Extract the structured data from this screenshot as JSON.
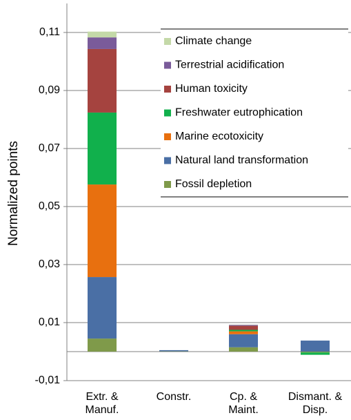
{
  "chart_data": {
    "type": "stacked-bar",
    "y_label": "Normalized points",
    "categories": [
      "Extr. &\nManuf.",
      "Constr.",
      "Cp. &\nMaint.",
      "Dismant. &\nDisp."
    ],
    "series": [
      {
        "name": "Climate change",
        "color": "#c4d9a8",
        "values": [
          0.002,
          0,
          0.0001,
          0
        ]
      },
      {
        "name": "Terrestrial acidification",
        "color": "#7a5b9a",
        "values": [
          0.004,
          0,
          0.0003,
          0
        ]
      },
      {
        "name": "Human toxicity",
        "color": "#a5433f",
        "values": [
          0.0219,
          0,
          0.0014,
          0
        ]
      },
      {
        "name": "Freshwater eutrophication",
        "color": "#11b04c",
        "values": [
          0.0248,
          0,
          0.0005,
          -0.0008
        ]
      },
      {
        "name": "Marine ecotoxicity",
        "color": "#e8700f",
        "values": [
          0.0319,
          0,
          0.001,
          0
        ]
      },
      {
        "name": "Natural land transformation",
        "color": "#4a6fa5",
        "values": [
          0.0212,
          0.0004,
          0.0045,
          0.0038
        ]
      },
      {
        "name": "Fossil depletion",
        "color": "#7f9a4a",
        "values": [
          0.0045,
          0.0001,
          0.0015,
          -0.0003
        ]
      }
    ],
    "ylim": [
      -0.01,
      0.12
    ],
    "yticks": [
      {
        "value": -0.01,
        "label": "-0,01"
      },
      {
        "value": 0.01,
        "label": "0,01"
      },
      {
        "value": 0.03,
        "label": "0,03"
      },
      {
        "value": 0.05,
        "label": "0,05"
      },
      {
        "value": 0.07,
        "label": "0,07"
      },
      {
        "value": 0.09,
        "label": "0,09"
      },
      {
        "value": 0.11,
        "label": "0,11"
      }
    ],
    "grid": true
  }
}
